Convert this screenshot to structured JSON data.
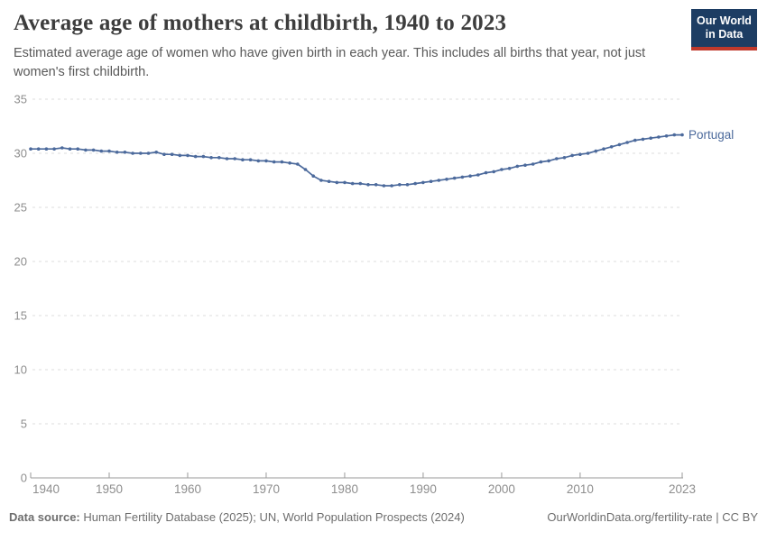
{
  "header": {
    "title": "Average age of mothers at childbirth, 1940 to 2023",
    "subtitle": "Estimated average age of women who have given birth in each year. This includes all births that year, not just women's first childbirth."
  },
  "logo": {
    "line1": "Our World",
    "line2": "in Data"
  },
  "chart_data": {
    "type": "line",
    "title": "Average age of mothers at childbirth, 1940 to 2023",
    "xlabel": "",
    "ylabel": "",
    "ylim": [
      0,
      35
    ],
    "xlim": [
      1940,
      2023
    ],
    "y_ticks": [
      0,
      5,
      10,
      15,
      20,
      25,
      30,
      35
    ],
    "x_ticks": [
      1940,
      1950,
      1960,
      1970,
      1980,
      1990,
      2000,
      2010,
      2023
    ],
    "grid": "horizontal-dashed",
    "legend": "end-of-line-label",
    "x": [
      1940,
      1941,
      1942,
      1943,
      1944,
      1945,
      1946,
      1947,
      1948,
      1949,
      1950,
      1951,
      1952,
      1953,
      1954,
      1955,
      1956,
      1957,
      1958,
      1959,
      1960,
      1961,
      1962,
      1963,
      1964,
      1965,
      1966,
      1967,
      1968,
      1969,
      1970,
      1971,
      1972,
      1973,
      1974,
      1975,
      1976,
      1977,
      1978,
      1979,
      1980,
      1981,
      1982,
      1983,
      1984,
      1985,
      1986,
      1987,
      1988,
      1989,
      1990,
      1991,
      1992,
      1993,
      1994,
      1995,
      1996,
      1997,
      1998,
      1999,
      2000,
      2001,
      2002,
      2003,
      2004,
      2005,
      2006,
      2007,
      2008,
      2009,
      2010,
      2011,
      2012,
      2013,
      2014,
      2015,
      2016,
      2017,
      2018,
      2019,
      2020,
      2021,
      2022,
      2023
    ],
    "series": [
      {
        "name": "Portugal",
        "color": "#4c6a9c",
        "values": [
          30.4,
          30.4,
          30.4,
          30.4,
          30.5,
          30.4,
          30.4,
          30.3,
          30.3,
          30.2,
          30.2,
          30.1,
          30.1,
          30.0,
          30.0,
          30.0,
          30.1,
          29.9,
          29.9,
          29.8,
          29.8,
          29.7,
          29.7,
          29.6,
          29.6,
          29.5,
          29.5,
          29.4,
          29.4,
          29.3,
          29.3,
          29.2,
          29.2,
          29.1,
          29.0,
          28.5,
          27.9,
          27.5,
          27.4,
          27.3,
          27.3,
          27.2,
          27.2,
          27.1,
          27.1,
          27.0,
          27.0,
          27.1,
          27.1,
          27.2,
          27.3,
          27.4,
          27.5,
          27.6,
          27.7,
          27.8,
          27.9,
          28.0,
          28.2,
          28.3,
          28.5,
          28.6,
          28.8,
          28.9,
          29.0,
          29.2,
          29.3,
          29.5,
          29.6,
          29.8,
          29.9,
          30.0,
          30.2,
          30.4,
          30.6,
          30.8,
          31.0,
          31.2,
          31.3,
          31.4,
          31.5,
          31.6,
          31.7,
          31.7
        ]
      }
    ]
  },
  "colors": {
    "line": "#4c6a9c",
    "entity_label": "#4c6a9c",
    "gridline": "#dcdcdc",
    "axis": "#9a9a9a",
    "tick_label": "#8e8e8e",
    "logo_background": "#1d3d63",
    "logo_bar": "#c0392b"
  },
  "footer": {
    "source_label": "Data source:",
    "source_text": "Human Fertility Database (2025); UN, World Population Prospects (2024)",
    "url_label": "OurWorldinData.org/fertility-rate",
    "separator": " | ",
    "license_label": "CC BY"
  }
}
